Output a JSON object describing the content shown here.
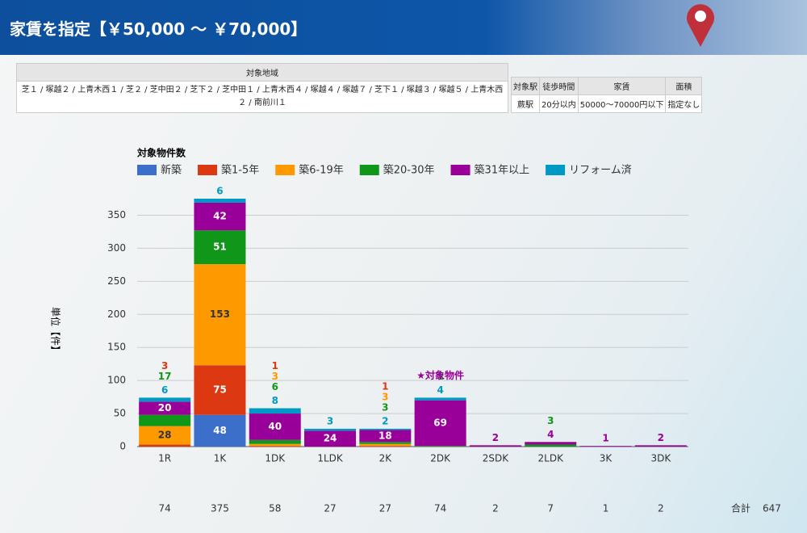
{
  "header": {
    "title": "家賃を指定【￥50,000 ～ ￥70,000】"
  },
  "table": {
    "area_header": "対象地域",
    "area_text": "芝１ / 塚越２ / 上青木西１ / 芝２ / 芝中田２ / 芝下２ / 芝中田１ / 上青木西４ / 塚越４ / 塚越７ / 芝下１ / 塚越３ / 塚越５ / 上青木西２ / 南前川１",
    "headers": [
      "対象駅",
      "徒歩時間",
      "家賃",
      "面積"
    ],
    "values": [
      "蕨駅",
      "20分以内",
      "50000～70000円以下",
      "指定なし"
    ]
  },
  "chart_data": {
    "type": "stacked_bar",
    "title": "対象物件数",
    "y_label": "単位【件】",
    "categories": [
      "1R",
      "1K",
      "1DK",
      "1LDK",
      "2K",
      "2DK",
      "2SDK",
      "2LDK",
      "3K",
      "3DK"
    ],
    "series": [
      {
        "name": "新築",
        "color": "#3b6fc9",
        "values": [
          0,
          48,
          0,
          0,
          0,
          0,
          0,
          0,
          0,
          0
        ]
      },
      {
        "name": "築1-5年",
        "color": "#dc3912",
        "values": [
          3,
          75,
          1,
          0,
          1,
          0,
          0,
          0,
          0,
          0
        ]
      },
      {
        "name": "築6-19年",
        "color": "#ff9900",
        "values": [
          28,
          153,
          3,
          0,
          3,
          0,
          0,
          0,
          0,
          0
        ]
      },
      {
        "name": "築20-30年",
        "color": "#109618",
        "values": [
          17,
          51,
          6,
          0,
          3,
          1,
          0,
          3,
          0,
          0
        ]
      },
      {
        "name": "築31年以上",
        "color": "#990099",
        "values": [
          20,
          42,
          40,
          24,
          18,
          69,
          2,
          4,
          1,
          2
        ]
      },
      {
        "name": "リフォーム済",
        "color": "#0099c6",
        "values": [
          6,
          6,
          8,
          3,
          2,
          4,
          0,
          0,
          0,
          0
        ]
      }
    ],
    "ylim": [
      0,
      375
    ],
    "yticks": [
      0,
      50,
      100,
      150,
      200,
      250,
      300,
      350
    ],
    "grid": true,
    "annotation": {
      "text": "★対象物件",
      "category": "2DK"
    },
    "totals": [
      74,
      375,
      58,
      27,
      27,
      74,
      2,
      7,
      1,
      2
    ],
    "total_label": "合計",
    "grand_total": 647
  }
}
